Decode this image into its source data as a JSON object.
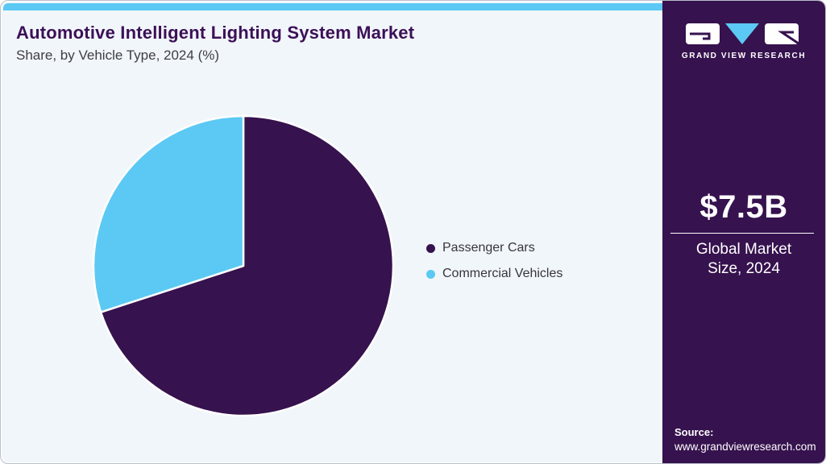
{
  "header": {
    "title": "Automotive Intelligent Lighting System Market",
    "subtitle": "Share, by Vehicle Type, 2024 (%)"
  },
  "chart_data": {
    "type": "pie",
    "title": "Automotive Intelligent Lighting System Market Share, by Vehicle Type, 2024 (%)",
    "categories": [
      "Passenger Cars",
      "Commercial Vehicles"
    ],
    "values": [
      70,
      30
    ],
    "values_note": "estimated from slice angles; no data labels shown",
    "colors": [
      "#36124e",
      "#5bc9f3"
    ],
    "start_angle_deg": 0,
    "direction": "clockwise",
    "legend_position": "right"
  },
  "legend": [
    {
      "label": "Passenger Cars",
      "color": "#36124e"
    },
    {
      "label": "Commercial Vehicles",
      "color": "#5bc9f3"
    }
  ],
  "brand": {
    "logo_text": "GRAND VIEW RESEARCH"
  },
  "sidebar": {
    "market_size_value": "$7.5B",
    "market_size_label": "Global Market Size, 2024",
    "source_label": "Source:",
    "source_url": "www.grandviewresearch.com"
  },
  "colors": {
    "accent_blue": "#5bc9f3",
    "brand_purple": "#36124e",
    "chart_bg": "#f1f6fa",
    "title_purple": "#3c1057"
  }
}
